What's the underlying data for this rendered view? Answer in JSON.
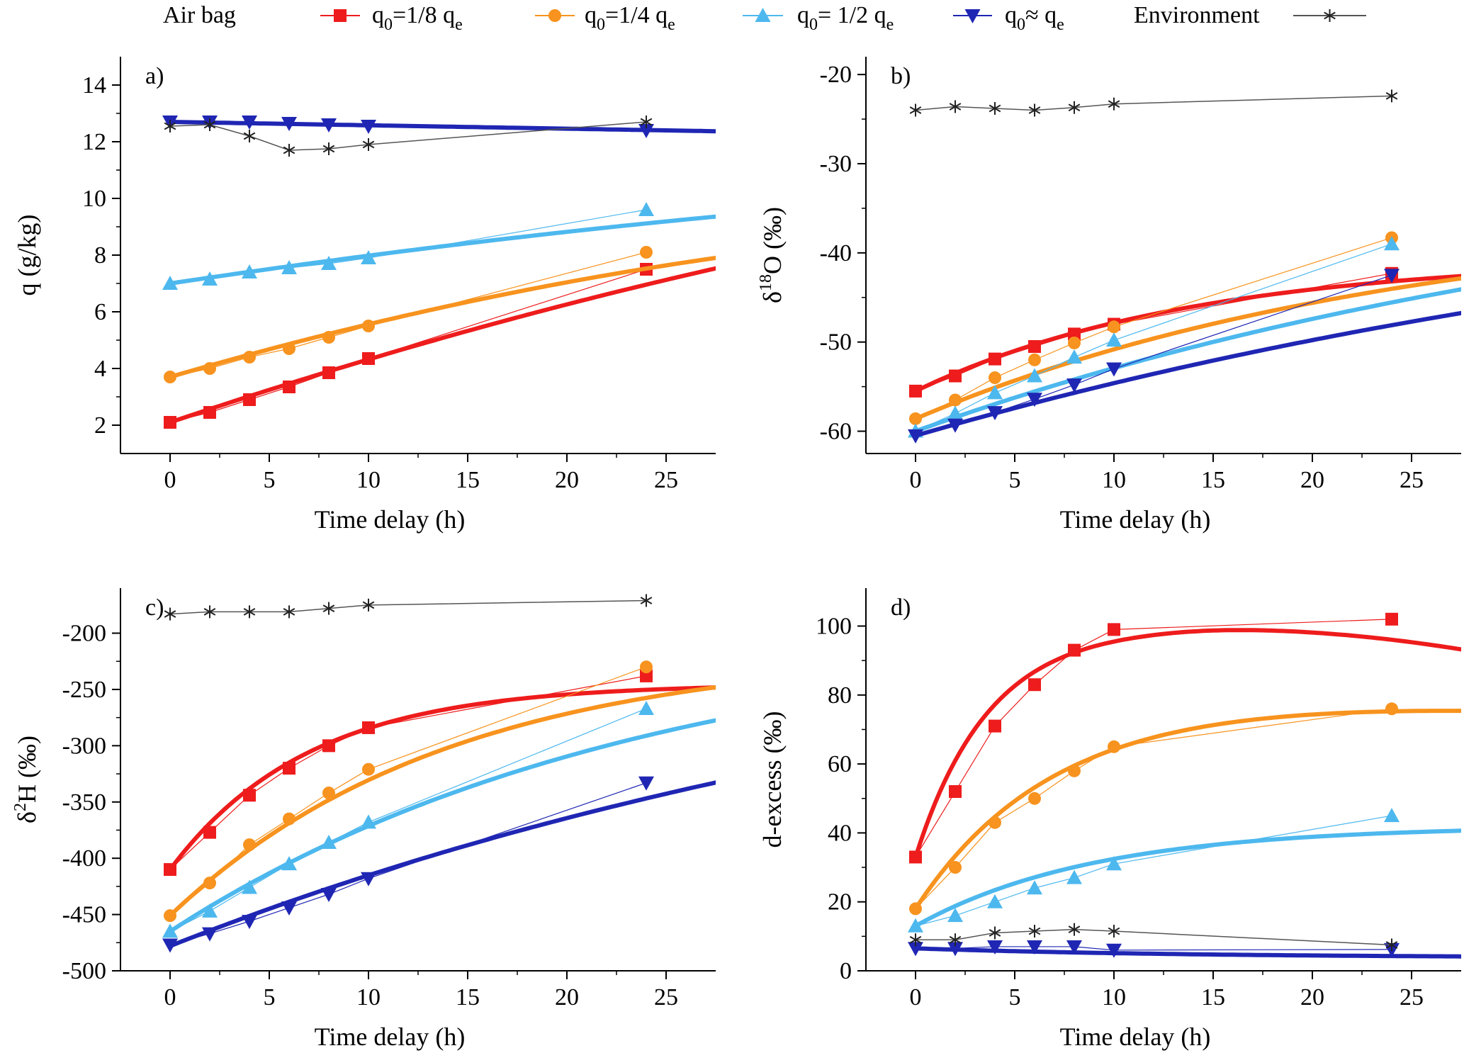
{
  "legend": {
    "group_title": "Air bag",
    "entries": [
      {
        "key": "q18",
        "main": "q",
        "sub": "0",
        "mid": "=1/8  q",
        "sub2": "e"
      },
      {
        "key": "q14",
        "main": "q",
        "sub": "0",
        "mid": "=1/4 q",
        "sub2": "e"
      },
      {
        "key": "q12",
        "main": "q",
        "sub": "0",
        "mid": "= 1/2 q",
        "sub2": "e"
      },
      {
        "key": "qe",
        "main": "q",
        "sub": "0",
        "mid": "≈ q",
        "sub2": "e"
      },
      {
        "key": "env",
        "label": "Environment"
      }
    ]
  },
  "styles": {
    "q18": {
      "color": "#ee1c1c",
      "marker": "square"
    },
    "q14": {
      "color": "#f7931e",
      "marker": "circle"
    },
    "q12": {
      "color": "#4db8ee",
      "marker": "triangle-up"
    },
    "qe": {
      "color": "#1f26b3",
      "marker": "triangle-down"
    },
    "env": {
      "color": "#555555",
      "marker": "asterisk"
    }
  },
  "chart_data": [
    {
      "panel": "a)",
      "type": "line",
      "xlabel": "Time delay (h)",
      "ylabel": {
        "main": "q (g/kg)"
      },
      "xlim": [
        -2.5,
        27.5
      ],
      "ylim": [
        1,
        15
      ],
      "xticks": [
        0,
        5,
        10,
        15,
        20,
        25
      ],
      "yticks": [
        2,
        4,
        6,
        8,
        10,
        12,
        14
      ],
      "x": [
        0,
        2,
        4,
        6,
        8,
        10,
        24
      ],
      "series": [
        {
          "key": "q18",
          "values": [
            2.1,
            2.45,
            2.9,
            3.35,
            3.85,
            4.35,
            7.5
          ],
          "fit": {
            "kind": "quad",
            "a": 2.1,
            "b": 0.236,
            "c": -0.0014
          }
        },
        {
          "key": "q14",
          "values": [
            3.7,
            4.0,
            4.4,
            4.7,
            5.1,
            5.5,
            8.1
          ],
          "fit": {
            "kind": "quad",
            "a": 3.7,
            "b": 0.205,
            "c": -0.0019
          }
        },
        {
          "key": "q12",
          "values": [
            7.0,
            7.15,
            7.4,
            7.55,
            7.7,
            7.9,
            9.6
          ],
          "fit": {
            "kind": "quad",
            "a": 7.0,
            "b": 0.105,
            "c": -0.0007
          }
        },
        {
          "key": "qe",
          "values": [
            12.7,
            12.7,
            12.7,
            12.65,
            12.6,
            12.55,
            12.4
          ],
          "fit": {
            "kind": "quad",
            "a": 12.7,
            "b": -0.012,
            "c": 0
          }
        },
        {
          "key": "env",
          "values": [
            12.55,
            12.6,
            12.2,
            11.7,
            11.75,
            11.9,
            12.7
          ]
        }
      ]
    },
    {
      "panel": "b)",
      "type": "line",
      "xlabel": "Time delay (h)",
      "ylabel": {
        "main": "δ",
        "sup": "18",
        "rest": "O (‰)"
      },
      "xlim": [
        -2.5,
        27.5
      ],
      "ylim": [
        -62.5,
        -18
      ],
      "xticks": [
        0,
        5,
        10,
        15,
        20,
        25
      ],
      "yticks": [
        -60,
        -50,
        -40,
        -30,
        -20
      ],
      "x": [
        0,
        2,
        4,
        6,
        8,
        10,
        24
      ],
      "series": [
        {
          "key": "q18",
          "values": [
            -55.5,
            -53.8,
            -51.9,
            -50.5,
            -49.1,
            -48.0,
            -42.3
          ],
          "fit": {
            "kind": "exp",
            "A": -40.5,
            "B": -15.0,
            "tau": 14
          }
        },
        {
          "key": "q14",
          "values": [
            -58.6,
            -56.5,
            -54.0,
            -52.0,
            -50.1,
            -48.3,
            -38.3
          ],
          "fit": {
            "kind": "exp",
            "A": -35,
            "B": -23.6,
            "tau": 25
          }
        },
        {
          "key": "q12",
          "values": [
            -60.0,
            -58.0,
            -55.7,
            -53.8,
            -51.7,
            -49.8,
            -39.0
          ],
          "fit": {
            "kind": "exp",
            "A": -28,
            "B": -32,
            "tau": 40
          }
        },
        {
          "key": "qe",
          "values": [
            -60.5,
            -59.3,
            -57.9,
            -56.4,
            -54.8,
            -53.0,
            -42.5
          ],
          "fit": {
            "kind": "exp",
            "A": -28,
            "B": -32.5,
            "tau": 50
          }
        },
        {
          "key": "env",
          "values": [
            -24.0,
            -23.6,
            -23.8,
            -24.0,
            -23.7,
            -23.3,
            -22.4
          ]
        }
      ]
    },
    {
      "panel": "c)",
      "type": "line",
      "xlabel": "Time delay (h)",
      "ylabel": {
        "main": "δ",
        "sup": "2",
        "rest": "H (‰)"
      },
      "xlim": [
        -2.5,
        27.5
      ],
      "ylim": [
        -500,
        -160
      ],
      "xticks": [
        0,
        5,
        10,
        15,
        20,
        25
      ],
      "yticks": [
        -500,
        -450,
        -400,
        -350,
        -300,
        -250,
        -200
      ],
      "x": [
        0,
        2,
        4,
        6,
        8,
        10,
        24
      ],
      "series": [
        {
          "key": "q18",
          "values": [
            -410,
            -377,
            -344,
            -320,
            -300,
            -284,
            -238
          ],
          "fit": {
            "kind": "exp",
            "A": -245,
            "B": -165,
            "tau": 7
          }
        },
        {
          "key": "q14",
          "values": [
            -451,
            -422,
            -388,
            -365,
            -342,
            -321,
            -230
          ],
          "fit": {
            "kind": "exp",
            "A": -215,
            "B": -236,
            "tau": 14
          }
        },
        {
          "key": "q12",
          "values": [
            -465,
            -447,
            -426,
            -405,
            -386,
            -368,
            -267
          ],
          "fit": {
            "kind": "exp",
            "A": -190,
            "B": -275,
            "tau": 24
          }
        },
        {
          "key": "qe",
          "values": [
            -477,
            -467,
            -456,
            -444,
            -432,
            -418,
            -333
          ],
          "fit": {
            "kind": "exp",
            "A": -150,
            "B": -328,
            "tau": 47
          }
        },
        {
          "key": "env",
          "values": [
            -183,
            -181,
            -181,
            -181,
            -178,
            -175,
            -171
          ]
        }
      ]
    },
    {
      "panel": "d)",
      "type": "line",
      "xlabel": "Time delay (h)",
      "ylabel": {
        "main": "d-excess (‰)"
      },
      "xlim": [
        -2.5,
        27.5
      ],
      "ylim": [
        0,
        111
      ],
      "xticks": [
        0,
        5,
        10,
        15,
        20,
        25
      ],
      "yticks": [
        0,
        20,
        40,
        60,
        80,
        100
      ],
      "x": [
        0,
        2,
        4,
        6,
        8,
        10,
        24
      ],
      "series": [
        {
          "key": "q18",
          "values": [
            33,
            52,
            71,
            83,
            93,
            99,
            102
          ],
          "fit": {
            "kind": "expdecay",
            "A": 100,
            "B": -67,
            "tau": 3.7,
            "s": 0.32,
            "t0": 13
          }
        },
        {
          "key": "q14",
          "values": [
            18,
            30,
            43,
            50,
            58,
            65,
            76
          ],
          "fit": {
            "kind": "expdecay",
            "A": 78,
            "B": -60,
            "tau": 6.8,
            "s": 0.05,
            "t0": 10
          }
        },
        {
          "key": "q12",
          "values": [
            13,
            16,
            20,
            24,
            27,
            31,
            45
          ],
          "fit": {
            "kind": "exp",
            "A": 42,
            "B": -29,
            "tau": 9
          }
        },
        {
          "key": "qe",
          "values": [
            6.5,
            6.5,
            7.0,
            7.0,
            7.0,
            6.0,
            6.2
          ],
          "fit": {
            "kind": "exp",
            "A": 3.8,
            "B": 2.7,
            "tau": 14
          }
        },
        {
          "key": "env",
          "values": [
            9,
            9,
            11,
            11.5,
            12,
            11.5,
            7.5
          ]
        }
      ]
    }
  ]
}
